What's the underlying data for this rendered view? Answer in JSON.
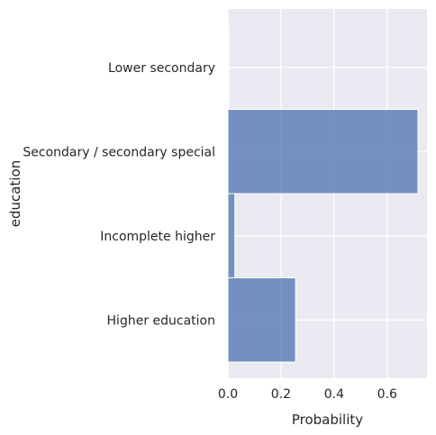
{
  "chart_data": {
    "type": "bar",
    "orientation": "horizontal",
    "categories": [
      "Lower secondary",
      "Secondary / secondary special",
      "Incomplete higher",
      "Higher education"
    ],
    "values": [
      0.003,
      0.716,
      0.026,
      0.255
    ],
    "xlabel": "Probability",
    "ylabel": "education",
    "xticks": [
      "0.0",
      "0.2",
      "0.4",
      "0.6"
    ],
    "xlim": [
      0,
      0.75
    ],
    "grid": true,
    "legend": "none",
    "colors": {
      "background": "#eaeaf2",
      "bar_fill": "#4c72b0",
      "grid": "#ffffff"
    }
  }
}
